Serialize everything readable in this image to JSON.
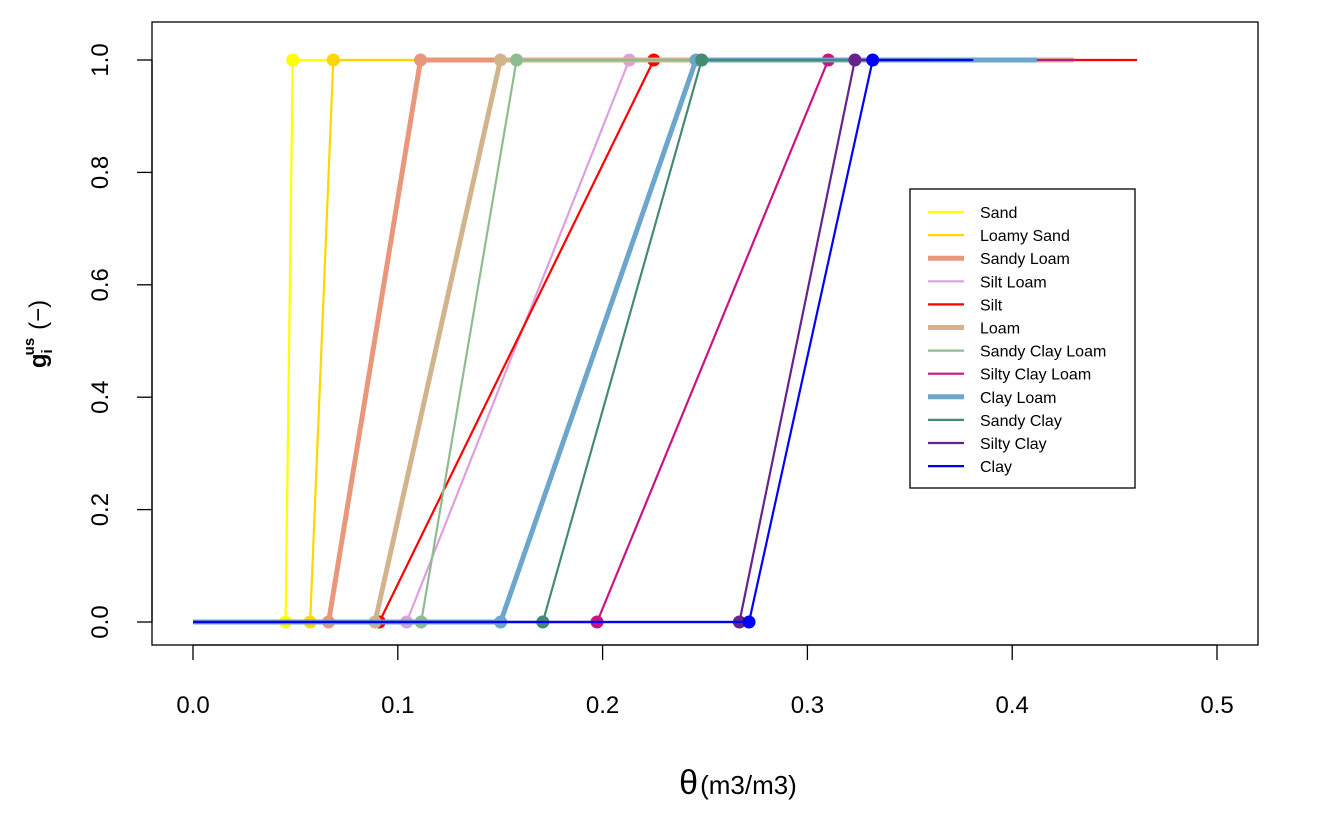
{
  "chart_data": {
    "type": "line",
    "title": "",
    "xlabel_symbol": "θ",
    "xlabel_unit": "(m3/m3)",
    "ylabel_main": "g",
    "ylabel_sub": "i",
    "ylabel_sup": "us",
    "ylabel_unit": "(−)",
    "xlim": [
      0,
      0.5
    ],
    "ylim": [
      0,
      1
    ],
    "xticks": [
      "0.0",
      "0.1",
      "0.2",
      "0.3",
      "0.4",
      "0.5"
    ],
    "yticks": [
      "0.0",
      "0.2",
      "0.4",
      "0.6",
      "0.8",
      "1.0"
    ],
    "legend_position": "right",
    "series": [
      {
        "name": "Sand",
        "color": "#FFFF00",
        "width": "thin",
        "x": [
          0,
          0.0452,
          0.0487,
          0.43
        ],
        "y": [
          0,
          0,
          1,
          1
        ]
      },
      {
        "name": "Loamy Sand",
        "color": "#FFD700",
        "width": "thin",
        "x": [
          0,
          0.0572,
          0.0685,
          0.41
        ],
        "y": [
          0,
          0,
          1,
          1
        ]
      },
      {
        "name": "Sandy Loam",
        "color": "#E9967A",
        "width": "thick",
        "x": [
          0,
          0.0662,
          0.1111,
          0.41
        ],
        "y": [
          0,
          0,
          1,
          1
        ]
      },
      {
        "name": "Silt Loam",
        "color": "#DDA0DD",
        "width": "thin",
        "x": [
          0,
          0.1043,
          0.213,
          0.45
        ],
        "y": [
          0,
          0,
          1,
          1
        ]
      },
      {
        "name": "Silt",
        "color": "#FF0000",
        "width": "thin",
        "x": [
          0,
          0.091,
          0.225,
          0.461
        ],
        "y": [
          0,
          0,
          1,
          1
        ]
      },
      {
        "name": "Loam",
        "color": "#D2B48C",
        "width": "thick",
        "x": [
          0,
          0.0889,
          0.1501,
          0.43
        ],
        "y": [
          0,
          0,
          1,
          1
        ]
      },
      {
        "name": "Sandy Clay Loam",
        "color": "#8FBC8F",
        "width": "thin",
        "x": [
          0,
          0.1114,
          0.158,
          0.39
        ],
        "y": [
          0,
          0,
          1,
          1
        ]
      },
      {
        "name": "Silty Clay Loam",
        "color": "#C71585",
        "width": "thin",
        "x": [
          0,
          0.1973,
          0.3102,
          0.431
        ],
        "y": [
          0,
          0,
          1,
          1
        ]
      },
      {
        "name": "Clay Loam",
        "color": "#6CA6CD",
        "width": "thick",
        "x": [
          0,
          0.1502,
          0.2456,
          0.412
        ],
        "y": [
          0,
          0,
          1,
          1
        ]
      },
      {
        "name": "Sandy Clay",
        "color": "#458B74",
        "width": "thin",
        "x": [
          0,
          0.1708,
          0.2484,
          0.38
        ],
        "y": [
          0,
          0,
          1,
          1
        ]
      },
      {
        "name": "Silty Clay",
        "color": "#68228B",
        "width": "thin",
        "x": [
          0,
          0.2668,
          0.3232,
          0.36
        ],
        "y": [
          0,
          0,
          1,
          1
        ]
      },
      {
        "name": "Clay",
        "color": "#0000FF",
        "width": "thin",
        "x": [
          0,
          0.2715,
          0.3319,
          0.381
        ],
        "y": [
          0,
          0,
          1,
          1
        ]
      }
    ]
  }
}
